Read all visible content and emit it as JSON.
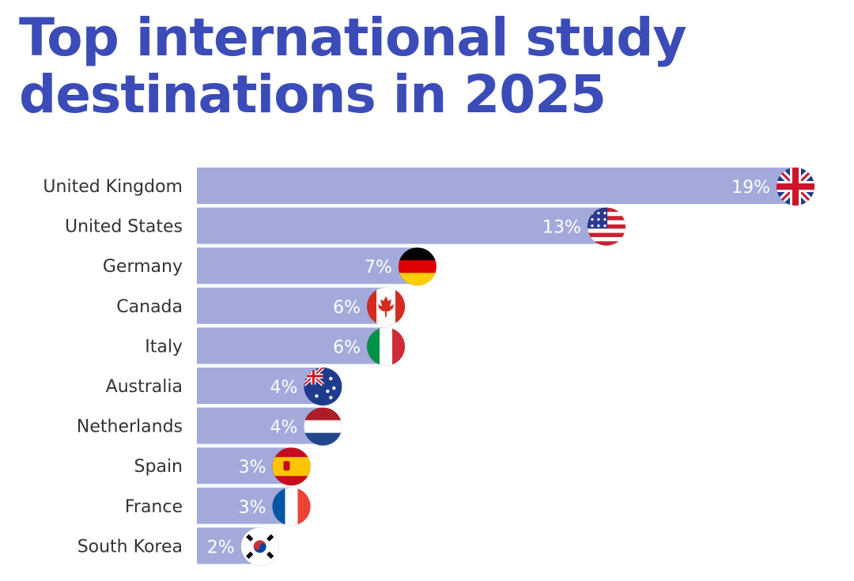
{
  "title": {
    "line1": "Top international study",
    "line2": "destinations in 2025"
  },
  "colors": {
    "title": "#3b4cb8",
    "bar": "#a3aadb",
    "label": "#333333",
    "value_label": "#ffffff"
  },
  "chart_data": {
    "type": "bar",
    "orientation": "horizontal",
    "title": "Top international study destinations in 2025",
    "categories": [
      "United Kingdom",
      "United States",
      "Germany",
      "Canada",
      "Italy",
      "Australia",
      "Netherlands",
      "Spain",
      "France",
      "South Korea"
    ],
    "values": [
      19,
      13,
      7,
      6,
      6,
      4,
      4,
      3,
      3,
      2
    ],
    "value_labels": [
      "19%",
      "13%",
      "7%",
      "6%",
      "6%",
      "4%",
      "4%",
      "3%",
      "3%",
      "2%"
    ],
    "flags": [
      "uk-flag-icon",
      "us-flag-icon",
      "germany-flag-icon",
      "canada-flag-icon",
      "italy-flag-icon",
      "australia-flag-icon",
      "netherlands-flag-icon",
      "spain-flag-icon",
      "france-flag-icon",
      "south-korea-flag-icon"
    ],
    "unit": "%",
    "grid": false,
    "legend": "none"
  }
}
